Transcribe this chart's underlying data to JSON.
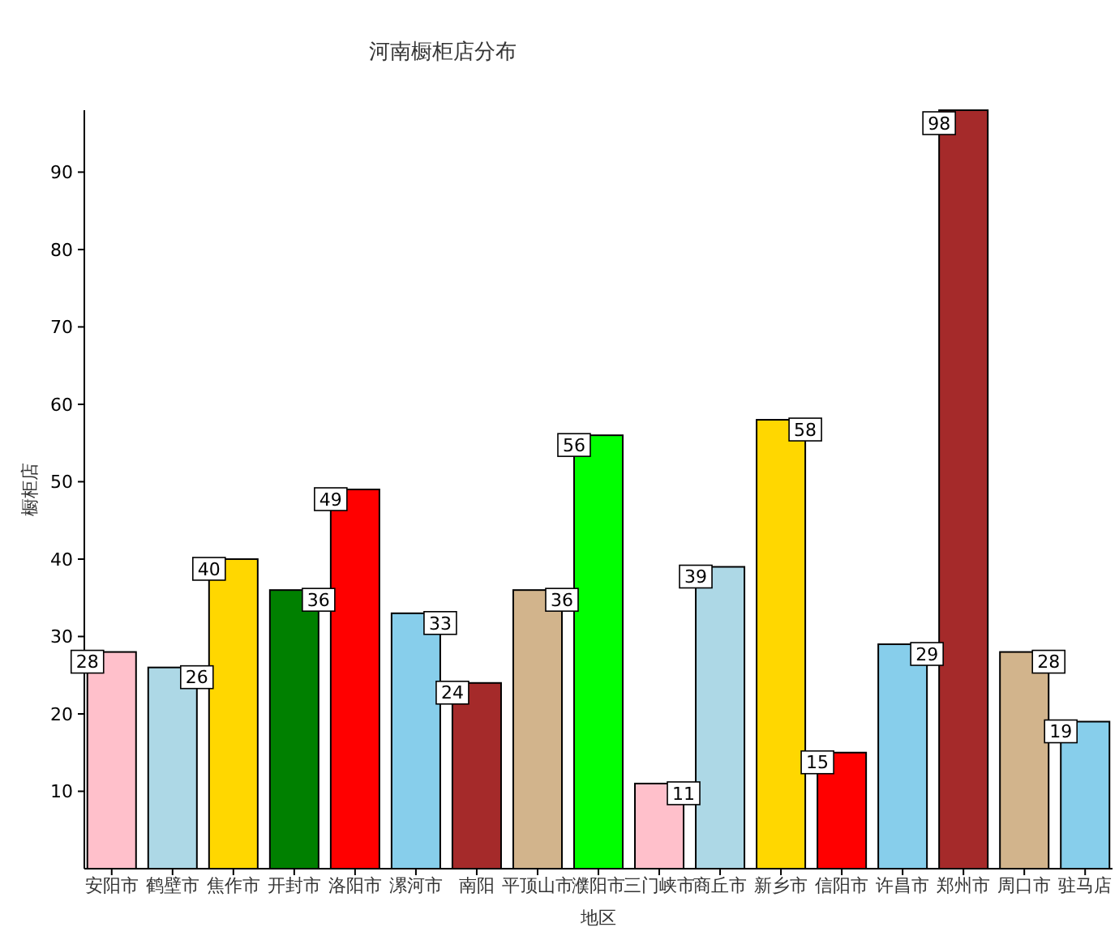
{
  "chart_data": {
    "type": "bar",
    "title": "河南橱柜店分布",
    "xlabel": "地区",
    "ylabel": "橱柜店",
    "categories": [
      "安阳市",
      "鹤壁市",
      "焦作市",
      "开封市",
      "洛阳市",
      "漯河市",
      "南阳",
      "平顶山市",
      "濮阳市",
      "三门峡市",
      "商丘市",
      "新乡市",
      "信阳市",
      "许昌市",
      "郑州市",
      "周口市",
      "驻马店"
    ],
    "values": [
      28,
      26,
      40,
      36,
      49,
      33,
      24,
      36,
      56,
      11,
      39,
      58,
      15,
      29,
      98,
      28,
      19
    ],
    "colors": [
      "#ffc0cb",
      "#add8e6",
      "#ffd700",
      "#008000",
      "#ff0000",
      "#87ceeb",
      "#a52a2a",
      "#d2b48c",
      "#00ff00",
      "#ffc0cb",
      "#add8e6",
      "#ffd700",
      "#ff0000",
      "#87ceeb",
      "#a52a2a",
      "#d2b48c",
      "#87ceeb"
    ],
    "ylim": [
      0,
      98
    ],
    "yticks": [
      10,
      20,
      30,
      40,
      50,
      60,
      70,
      80,
      90
    ],
    "grid": false,
    "data_labels": true
  }
}
